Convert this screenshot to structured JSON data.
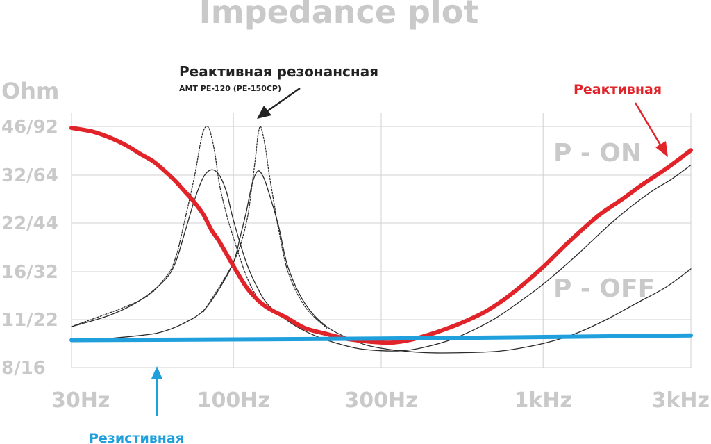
{
  "colors": {
    "reactive": "#e0242a",
    "resistive": "#1fa0dc",
    "resonant": "#2a2a2a",
    "label_gray": "#c9c9c9",
    "grid": "#d0d0d0"
  },
  "chart_data": {
    "type": "line",
    "title": "Impedance plot",
    "ylabel": "Ohm",
    "xscale": "log",
    "xlim": [
      30,
      3000
    ],
    "x_ticks": [
      {
        "value": 30,
        "label": "30Hz"
      },
      {
        "value": 100,
        "label": "100Hz"
      },
      {
        "value": 300,
        "label": "300Hz"
      },
      {
        "value": 1000,
        "label": "1kHz"
      },
      {
        "value": 3000,
        "label": "3kHz"
      }
    ],
    "y_ticks": [
      "8/16",
      "11/22",
      "16/32",
      "22/44",
      "32/64",
      "46/92"
    ],
    "grid": true,
    "annotations": {
      "resonant_title": "Реактивная резонансная",
      "resonant_subtitle": "AMT PE-120 (PE-150CP)",
      "reactive": "Реактивная",
      "resistive": "Резистивная",
      "p_on": "P - ON",
      "p_off": "P - OFF"
    },
    "series": [
      {
        "name": "Реактивная",
        "color": "#e0242a",
        "style": "thick",
        "points": [
          [
            30,
            45.5
          ],
          [
            35,
            44.3
          ],
          [
            40,
            42.3
          ],
          [
            45,
            40
          ],
          [
            50,
            37.5
          ],
          [
            55,
            35.5
          ],
          [
            60,
            33
          ],
          [
            65,
            30.5
          ],
          [
            70,
            28
          ],
          [
            75,
            25.8
          ],
          [
            80,
            23.5
          ],
          [
            85,
            21
          ],
          [
            90,
            19.5
          ],
          [
            100,
            16.6
          ],
          [
            110,
            14.2
          ],
          [
            120,
            12.8
          ],
          [
            130,
            12
          ],
          [
            150,
            11.1
          ],
          [
            170,
            10.4
          ],
          [
            200,
            10.0
          ],
          [
            230,
            9.7
          ],
          [
            260,
            9.55
          ],
          [
            300,
            9.45
          ],
          [
            330,
            9.45
          ],
          [
            370,
            9.6
          ],
          [
            420,
            9.9
          ],
          [
            480,
            10.3
          ],
          [
            550,
            10.8
          ],
          [
            650,
            11.7
          ],
          [
            750,
            12.9
          ],
          [
            850,
            14.3
          ],
          [
            1000,
            16.5
          ],
          [
            1200,
            19.3
          ],
          [
            1500,
            23.2
          ],
          [
            1800,
            26.5
          ],
          [
            2100,
            29.8
          ],
          [
            2500,
            33.6
          ],
          [
            3000,
            38.5
          ]
        ]
      },
      {
        "name": "Резистивная",
        "color": "#1fa0dc",
        "style": "thick",
        "points": [
          [
            30,
            9.6
          ],
          [
            300,
            9.7
          ],
          [
            3000,
            9.9
          ]
        ]
      },
      {
        "color": "#2a2a2a",
        "style": "thin",
        "points": [
          [
            30,
            10.5
          ],
          [
            40,
            11.4
          ],
          [
            50,
            12.8
          ],
          [
            60,
            15
          ],
          [
            65,
            17
          ],
          [
            70,
            21
          ],
          [
            75,
            26.5
          ],
          [
            80,
            31.5
          ],
          [
            85,
            33.3
          ],
          [
            90,
            32
          ],
          [
            95,
            28
          ],
          [
            100,
            22.5
          ],
          [
            110,
            17
          ],
          [
            120,
            14
          ],
          [
            130,
            12.3
          ],
          [
            150,
            10.9
          ],
          [
            170,
            10.2
          ],
          [
            200,
            9.6
          ],
          [
            250,
            9.1
          ],
          [
            300,
            8.95
          ],
          [
            350,
            8.95
          ],
          [
            400,
            9.1
          ],
          [
            500,
            9.6
          ],
          [
            600,
            10.3
          ],
          [
            700,
            11.1
          ],
          [
            800,
            12.2
          ],
          [
            1000,
            14.5
          ],
          [
            1300,
            18
          ],
          [
            1700,
            22.5
          ],
          [
            2200,
            27.8
          ],
          [
            2600,
            31
          ],
          [
            3000,
            34.5
          ]
        ]
      },
      {
        "color": "#2a2a2a",
        "style": "dotted",
        "points": [
          [
            30,
            10.5
          ],
          [
            50,
            12.8
          ],
          [
            60,
            15.2
          ],
          [
            65,
            17.5
          ],
          [
            70,
            23
          ],
          [
            75,
            32
          ],
          [
            78,
            40
          ],
          [
            80,
            44.5
          ],
          [
            82,
            46
          ],
          [
            84,
            44.5
          ],
          [
            87,
            38
          ],
          [
            90,
            30
          ],
          [
            95,
            23.5
          ],
          [
            100,
            20
          ],
          [
            110,
            15.5
          ],
          [
            120,
            13
          ],
          [
            130,
            12
          ]
        ]
      },
      {
        "color": "#2a2a2a",
        "style": "thin",
        "points": [
          [
            30,
            9.5
          ],
          [
            50,
            9.9
          ],
          [
            60,
            10.2
          ],
          [
            70,
            10.8
          ],
          [
            80,
            11.8
          ],
          [
            90,
            14
          ],
          [
            100,
            17
          ],
          [
            105,
            20
          ],
          [
            110,
            24
          ],
          [
            115,
            30
          ],
          [
            120,
            33
          ],
          [
            125,
            31.5
          ],
          [
            130,
            28
          ],
          [
            140,
            21.5
          ],
          [
            150,
            16.5
          ],
          [
            170,
            12.5
          ],
          [
            200,
            10.5
          ],
          [
            250,
            9.5
          ],
          [
            300,
            9.1
          ],
          [
            400,
            8.85
          ],
          [
            500,
            8.82
          ],
          [
            700,
            8.9
          ],
          [
            900,
            9.2
          ],
          [
            1100,
            9.6
          ],
          [
            1300,
            10.1
          ],
          [
            1600,
            11
          ],
          [
            2000,
            12.5
          ],
          [
            2500,
            14.2
          ],
          [
            3000,
            16.3
          ]
        ]
      },
      {
        "color": "#2a2a2a",
        "style": "dotted",
        "points": [
          [
            80,
            11.7
          ],
          [
            100,
            17
          ],
          [
            110,
            22
          ],
          [
            115,
            30
          ],
          [
            118,
            37
          ],
          [
            120,
            43
          ],
          [
            122,
            46
          ],
          [
            124,
            44
          ],
          [
            127,
            39
          ],
          [
            130,
            33
          ],
          [
            135,
            26
          ],
          [
            140,
            21
          ],
          [
            150,
            16
          ],
          [
            170,
            12.2
          ],
          [
            200,
            10.4
          ]
        ]
      }
    ]
  }
}
